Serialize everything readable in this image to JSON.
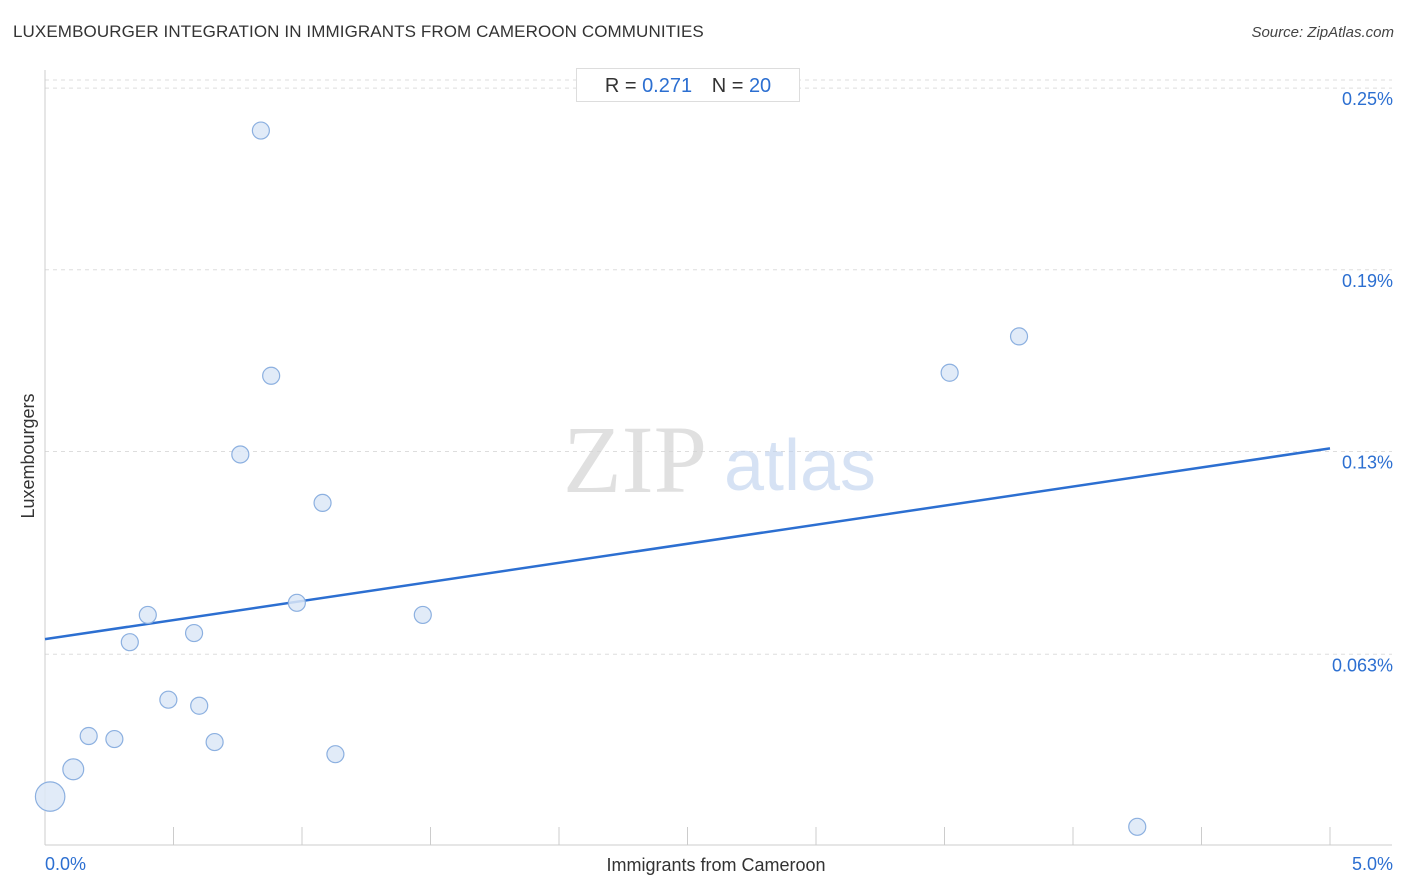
{
  "title": "LUXEMBOURGER INTEGRATION IN IMMIGRANTS FROM CAMEROON COMMUNITIES",
  "source": "Source: ZipAtlas.com",
  "stats": {
    "r_label": "R =",
    "r_value": "0.271",
    "n_label": "N =",
    "n_value": "20"
  },
  "watermark": {
    "zip": "ZIP",
    "atlas": "atlas"
  },
  "colors": {
    "accent": "#2c6fd1",
    "point_fill": "#dce8f7",
    "point_stroke": "#8cb0e0",
    "grid": "#dddddd"
  },
  "chart_data": {
    "type": "scatter",
    "xlabel": "Immigrants from Cameroon",
    "ylabel": "Luxembourgers",
    "x_tick_labels": [
      "0.0%",
      "5.0%"
    ],
    "y_tick_labels": [
      "0.25%",
      "0.19%",
      "0.13%",
      "0.063%"
    ],
    "y_ticks": [
      0.25,
      0.19,
      0.13,
      0.063
    ],
    "xlim": [
      0,
      5.0
    ],
    "ylim": [
      0.0,
      0.256
    ],
    "points": [
      {
        "x": 0.02,
        "y": 0.016,
        "size": 3
      },
      {
        "x": 0.11,
        "y": 0.025,
        "size": 1.5
      },
      {
        "x": 0.17,
        "y": 0.036,
        "size": 1
      },
      {
        "x": 0.27,
        "y": 0.035,
        "size": 1
      },
      {
        "x": 0.33,
        "y": 0.067,
        "size": 1
      },
      {
        "x": 0.4,
        "y": 0.076,
        "size": 1
      },
      {
        "x": 0.48,
        "y": 0.048,
        "size": 1
      },
      {
        "x": 0.58,
        "y": 0.07,
        "size": 1
      },
      {
        "x": 0.6,
        "y": 0.046,
        "size": 1
      },
      {
        "x": 0.66,
        "y": 0.034,
        "size": 1
      },
      {
        "x": 0.76,
        "y": 0.129,
        "size": 1
      },
      {
        "x": 0.84,
        "y": 0.236,
        "size": 1
      },
      {
        "x": 0.88,
        "y": 0.155,
        "size": 1
      },
      {
        "x": 0.98,
        "y": 0.08,
        "size": 1
      },
      {
        "x": 1.08,
        "y": 0.113,
        "size": 1
      },
      {
        "x": 1.13,
        "y": 0.03,
        "size": 1
      },
      {
        "x": 1.47,
        "y": 0.076,
        "size": 1
      },
      {
        "x": 3.52,
        "y": 0.156,
        "size": 1
      },
      {
        "x": 3.79,
        "y": 0.168,
        "size": 1
      },
      {
        "x": 4.25,
        "y": 0.006,
        "size": 1
      }
    ],
    "trendline": {
      "x": [
        0,
        5.0
      ],
      "y": [
        0.068,
        0.131
      ]
    },
    "grid": true
  }
}
